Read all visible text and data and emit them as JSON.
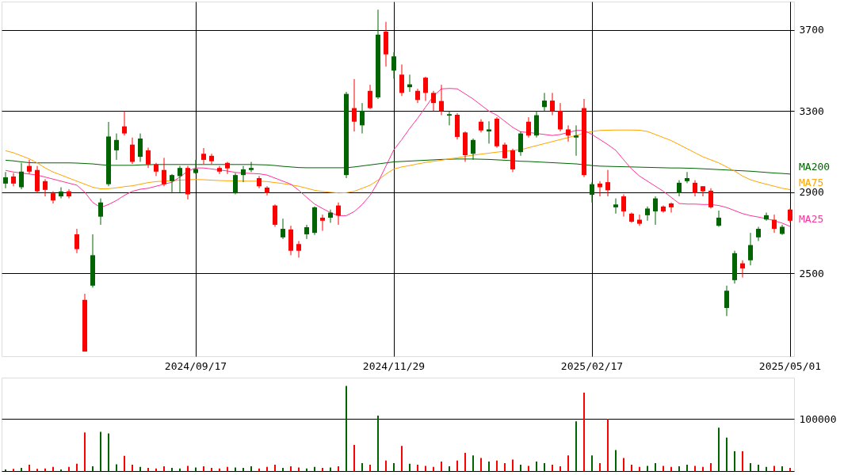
{
  "chart_data": [
    {
      "type": "candlestick",
      "categories": [
        null,
        null,
        null,
        null,
        null,
        null,
        null,
        null,
        null,
        null,
        null,
        null,
        null,
        null,
        null,
        null,
        null,
        null,
        null,
        null,
        null,
        null,
        null,
        null,
        "2024/09/17",
        null,
        null,
        null,
        null,
        null,
        null,
        null,
        null,
        null,
        null,
        null,
        null,
        null,
        null,
        null,
        null,
        null,
        null,
        null,
        null,
        null,
        null,
        null,
        null,
        "2024/11/29",
        null,
        null,
        null,
        null,
        null,
        null,
        null,
        null,
        null,
        null,
        null,
        null,
        null,
        null,
        null,
        null,
        null,
        null,
        null,
        null,
        null,
        null,
        null,
        null,
        "2025/02/17",
        null,
        null,
        null,
        null,
        null,
        null,
        null,
        null,
        null,
        null,
        null,
        null,
        null,
        null,
        null,
        null,
        null,
        null,
        null,
        null,
        null,
        null,
        null,
        null,
        "2025/05/01"
      ],
      "ohlc": [
        [
          2943,
          3000,
          2920,
          2974
        ],
        [
          2978,
          2995,
          2930,
          2943
        ],
        [
          2925,
          3045,
          2915,
          3002
        ],
        [
          3030,
          3060,
          2990,
          3002
        ],
        [
          3010,
          3030,
          2895,
          2905
        ],
        [
          2955,
          2965,
          2880,
          2912
        ],
        [
          2895,
          2905,
          2845,
          2860
        ],
        [
          2880,
          2925,
          2870,
          2904
        ],
        [
          2905,
          2915,
          2870,
          2880
        ],
        [
          2693,
          2720,
          2600,
          2620
        ],
        [
          2370,
          2400,
          2115,
          2115
        ],
        [
          2440,
          2693,
          2430,
          2590
        ],
        [
          2780,
          2870,
          2740,
          2850
        ],
        [
          2940,
          3247,
          2930,
          3175
        ],
        [
          3107,
          3190,
          3060,
          3158
        ],
        [
          3225,
          3300,
          3180,
          3190
        ],
        [
          3135,
          3170,
          3040,
          3050
        ],
        [
          3075,
          3190,
          3050,
          3165
        ],
        [
          3107,
          3120,
          3020,
          3037
        ],
        [
          3037,
          3045,
          2980,
          3002
        ],
        [
          3010,
          3070,
          2930,
          2940
        ],
        [
          2955,
          2990,
          2895,
          2985
        ],
        [
          2980,
          3030,
          2900,
          3020
        ],
        [
          3020,
          3030,
          2865,
          2890
        ],
        [
          2995,
          3060,
          2990,
          3015
        ],
        [
          3090,
          3118,
          3040,
          3060
        ],
        [
          3080,
          3090,
          3040,
          3053
        ],
        [
          3020,
          3030,
          2990,
          3002
        ],
        [
          3045,
          3050,
          2990,
          3018
        ],
        [
          2895,
          2995,
          2890,
          2985
        ],
        [
          2985,
          3030,
          2950,
          3013
        ],
        [
          3010,
          3050,
          3000,
          3020
        ],
        [
          2970,
          2980,
          2920,
          2930
        ],
        [
          2923,
          2930,
          2885,
          2896
        ],
        [
          2835,
          2840,
          2730,
          2740
        ],
        [
          2678,
          2770,
          2670,
          2720
        ],
        [
          2717,
          2735,
          2590,
          2612
        ],
        [
          2645,
          2660,
          2578,
          2612
        ],
        [
          2693,
          2740,
          2670,
          2728
        ],
        [
          2700,
          2830,
          2690,
          2826
        ],
        [
          2775,
          2790,
          2710,
          2760
        ],
        [
          2775,
          2815,
          2750,
          2800
        ],
        [
          2835,
          2850,
          2740,
          2785
        ],
        [
          2985,
          3395,
          2970,
          3385
        ],
        [
          3315,
          3458,
          3200,
          3248
        ],
        [
          3230,
          3340,
          3190,
          3302
        ],
        [
          3400,
          3430,
          3310,
          3315
        ],
        [
          3368,
          3800,
          3360,
          3677
        ],
        [
          3692,
          3740,
          3520,
          3580
        ],
        [
          3500,
          3590,
          3460,
          3570
        ],
        [
          3480,
          3530,
          3375,
          3390
        ],
        [
          3418,
          3480,
          3395,
          3432
        ],
        [
          3400,
          3410,
          3340,
          3355
        ],
        [
          3465,
          3470,
          3350,
          3390
        ],
        [
          3390,
          3400,
          3300,
          3340
        ],
        [
          3350,
          3430,
          3280,
          3300
        ],
        [
          3278,
          3300,
          3230,
          3285
        ],
        [
          3282,
          3290,
          3160,
          3173
        ],
        [
          3195,
          3200,
          3050,
          3083
        ],
        [
          3090,
          3165,
          3060,
          3158
        ],
        [
          3248,
          3260,
          3195,
          3205
        ],
        [
          3200,
          3250,
          3140,
          3210
        ],
        [
          3263,
          3270,
          3120,
          3127
        ],
        [
          3135,
          3145,
          3065,
          3068
        ],
        [
          3107,
          3115,
          3000,
          3013
        ],
        [
          3098,
          3200,
          3080,
          3190
        ],
        [
          3248,
          3270,
          3170,
          3180
        ],
        [
          3180,
          3300,
          3170,
          3280
        ],
        [
          3320,
          3390,
          3300,
          3352
        ],
        [
          3352,
          3390,
          3280,
          3300
        ],
        [
          3302,
          3340,
          3200,
          3210
        ],
        [
          3210,
          3230,
          3150,
          3180
        ],
        [
          3170,
          3230,
          3080,
          3180
        ],
        [
          3315,
          3360,
          2975,
          2985
        ],
        [
          2888,
          2950,
          2850,
          2940
        ],
        [
          2943,
          2955,
          2880,
          2925
        ],
        [
          2950,
          3010,
          2880,
          2910
        ],
        [
          2826,
          2870,
          2795,
          2840
        ],
        [
          2880,
          2890,
          2780,
          2806
        ],
        [
          2795,
          2800,
          2750,
          2755
        ],
        [
          2765,
          2790,
          2735,
          2745
        ],
        [
          2787,
          2830,
          2760,
          2820
        ],
        [
          2806,
          2880,
          2740,
          2870
        ],
        [
          2830,
          2835,
          2800,
          2806
        ],
        [
          2845,
          2850,
          2800,
          2826
        ],
        [
          2896,
          2960,
          2880,
          2947
        ],
        [
          2955,
          3000,
          2945,
          2970
        ],
        [
          2947,
          2960,
          2880,
          2896
        ],
        [
          2930,
          2930,
          2880,
          2905
        ],
        [
          2908,
          2920,
          2820,
          2826
        ],
        [
          2735,
          2810,
          2730,
          2775
        ],
        [
          2330,
          2440,
          2290,
          2415
        ],
        [
          2467,
          2612,
          2450,
          2600
        ],
        [
          2550,
          2565,
          2480,
          2525
        ],
        [
          2565,
          2700,
          2540,
          2640
        ],
        [
          2678,
          2730,
          2660,
          2720
        ],
        [
          2766,
          2800,
          2760,
          2787
        ],
        [
          2765,
          2790,
          2700,
          2720
        ],
        [
          2695,
          2740,
          2690,
          2730
        ],
        [
          2815,
          2820,
          2750,
          2760
        ]
      ],
      "colors": [
        "#006400",
        "#ff0000",
        "#006400",
        "#ff0000",
        "#ff0000",
        "#ff0000",
        "#ff0000",
        "#006400",
        "#ff0000",
        "#ff0000",
        "#ff0000",
        "#006400",
        "#006400",
        "#006400",
        "#006400",
        "#ff0000",
        "#ff0000",
        "#006400",
        "#ff0000",
        "#ff0000",
        "#ff0000",
        "#006400",
        "#006400",
        "#ff0000",
        "#006400",
        "#ff0000",
        "#ff0000",
        "#ff0000",
        "#ff0000",
        "#006400",
        "#006400",
        "#006400",
        "#ff0000",
        "#ff0000",
        "#ff0000",
        "#006400",
        "#ff0000",
        "#ff0000",
        "#006400",
        "#006400",
        "#ff0000",
        "#006400",
        "#ff0000",
        "#006400",
        "#ff0000",
        "#006400",
        "#ff0000",
        "#006400",
        "#ff0000",
        "#006400",
        "#ff0000",
        "#006400",
        "#ff0000",
        "#ff0000",
        "#ff0000",
        "#ff0000",
        "#006400",
        "#ff0000",
        "#ff0000",
        "#006400",
        "#ff0000",
        "#006400",
        "#ff0000",
        "#ff0000",
        "#ff0000",
        "#006400",
        "#ff0000",
        "#006400",
        "#006400",
        "#ff0000",
        "#ff0000",
        "#ff0000",
        "#006400",
        "#ff0000",
        "#006400",
        "#ff0000",
        "#ff0000",
        "#006400",
        "#ff0000",
        "#ff0000",
        "#ff0000",
        "#006400",
        "#006400",
        "#ff0000",
        "#ff0000",
        "#006400",
        "#006400",
        "#ff0000",
        "#ff0000",
        "#ff0000",
        "#006400",
        "#006400",
        "#006400",
        "#ff0000",
        "#006400",
        "#006400",
        "#006400",
        "#ff0000",
        "#006400",
        "#ff0000"
      ],
      "series": [
        {
          "name": "MA200",
          "type": "line",
          "color": "#006400",
          "values": [
            3058,
            3055,
            3050,
            3046,
            3045,
            3045,
            3045,
            3045,
            3045,
            3044,
            3042,
            3040,
            3036,
            3033,
            3033,
            3033,
            3033,
            3035,
            3036,
            3037,
            3037,
            3037,
            3037,
            3037,
            3037,
            3037,
            3037,
            3037,
            3037,
            3037,
            3037,
            3037,
            3036,
            3035,
            3032,
            3028,
            3025,
            3022,
            3021,
            3021,
            3021,
            3021,
            3021,
            3021,
            3025,
            3030,
            3035,
            3040,
            3045,
            3050,
            3052,
            3054,
            3056,
            3058,
            3060,
            3062,
            3063,
            3064,
            3064,
            3064,
            3063,
            3062,
            3060,
            3058,
            3056,
            3053,
            3052,
            3050,
            3048,
            3046,
            3044,
            3042,
            3040,
            3036,
            3032,
            3029,
            3028,
            3027,
            3026,
            3025,
            3024,
            3023,
            3022,
            3021,
            3020,
            3020,
            3019,
            3018,
            3016,
            3014,
            3012,
            3010,
            3008,
            3006,
            3004,
            3001,
            2998,
            2995,
            2993,
            2990
          ]
        },
        {
          "name": "MA75",
          "type": "line",
          "color": "#ffa500",
          "values": [
            3105,
            3095,
            3080,
            3065,
            3045,
            3020,
            3000,
            2985,
            2970,
            2955,
            2940,
            2925,
            2917,
            2918,
            2922,
            2928,
            2932,
            2940,
            2948,
            2953,
            2955,
            2958,
            2960,
            2962,
            2963,
            2962,
            2960,
            2958,
            2957,
            2956,
            2955,
            2955,
            2955,
            2953,
            2948,
            2943,
            2937,
            2930,
            2920,
            2910,
            2904,
            2900,
            2897,
            2898,
            2905,
            2920,
            2935,
            2960,
            2990,
            3015,
            3025,
            3032,
            3040,
            3047,
            3053,
            3058,
            3065,
            3070,
            3077,
            3083,
            3088,
            3093,
            3098,
            3102,
            3106,
            3110,
            3120,
            3130,
            3140,
            3150,
            3160,
            3170,
            3180,
            3192,
            3200,
            3205,
            3206,
            3207,
            3207,
            3207,
            3206,
            3200,
            3185,
            3170,
            3155,
            3135,
            3115,
            3095,
            3075,
            3060,
            3045,
            3025,
            3005,
            2980,
            2962,
            2950,
            2940,
            2930,
            2920,
            2913
          ]
        },
        {
          "name": "MA25",
          "type": "line",
          "color": "#ff3399",
          "values": [
            3008,
            3000,
            2995,
            2990,
            2985,
            2975,
            2965,
            2955,
            2945,
            2935,
            2900,
            2850,
            2825,
            2840,
            2860,
            2885,
            2905,
            2915,
            2920,
            2930,
            2940,
            2950,
            2975,
            3005,
            3020,
            3020,
            3015,
            3010,
            3005,
            2998,
            2995,
            2993,
            2991,
            2985,
            2970,
            2955,
            2940,
            2910,
            2875,
            2842,
            2820,
            2800,
            2785,
            2785,
            2805,
            2840,
            2885,
            2950,
            3030,
            3110,
            3160,
            3215,
            3265,
            3320,
            3375,
            3410,
            3412,
            3410,
            3385,
            3360,
            3330,
            3300,
            3280,
            3250,
            3220,
            3198,
            3195,
            3190,
            3185,
            3180,
            3185,
            3195,
            3205,
            3205,
            3185,
            3160,
            3135,
            3107,
            3060,
            3015,
            2980,
            2955,
            2930,
            2905,
            2875,
            2845,
            2842,
            2842,
            2840,
            2840,
            2835,
            2825,
            2810,
            2795,
            2785,
            2778,
            2770,
            2760,
            2748,
            2732
          ]
        }
      ],
      "ylim": [
        2092,
        3840
      ],
      "yticks": [
        2500,
        2900,
        3300,
        3700
      ],
      "grid": true
    },
    {
      "type": "bar",
      "categories": [
        null,
        null,
        null,
        null,
        null,
        null,
        null,
        null,
        null,
        null,
        null,
        null,
        null,
        null,
        null,
        null,
        null,
        null,
        null,
        null,
        null,
        null,
        null,
        null,
        "2024/09/17",
        null,
        null,
        null,
        null,
        null,
        null,
        null,
        null,
        null,
        null,
        null,
        null,
        null,
        null,
        null,
        null,
        null,
        null,
        null,
        null,
        null,
        null,
        null,
        null,
        "2024/11/29",
        null,
        null,
        null,
        null,
        null,
        null,
        null,
        null,
        null,
        null,
        null,
        null,
        null,
        null,
        null,
        null,
        null,
        null,
        null,
        null,
        null,
        null,
        null,
        null,
        "2025/02/17",
        null,
        null,
        null,
        null,
        null,
        null,
        null,
        null,
        null,
        null,
        null,
        null,
        null,
        null,
        null,
        null,
        null,
        null,
        null,
        null,
        null,
        null,
        null,
        null,
        "2025/05/01"
      ],
      "values": [
        3000,
        4000,
        6000,
        12000,
        4000,
        5000,
        8000,
        3000,
        8000,
        14000,
        74000,
        9000,
        75000,
        72000,
        13000,
        29000,
        12000,
        8000,
        6000,
        5000,
        9000,
        6000,
        5000,
        10000,
        7000,
        9000,
        6000,
        5000,
        8000,
        7000,
        6000,
        9000,
        5000,
        8000,
        12000,
        6000,
        9000,
        7000,
        5000,
        8000,
        6000,
        7000,
        9000,
        163000,
        50000,
        15000,
        12000,
        106000,
        20000,
        15000,
        48000,
        14000,
        12000,
        10000,
        8000,
        18000,
        9000,
        20000,
        35000,
        30000,
        25000,
        18000,
        20000,
        15000,
        22000,
        12000,
        10000,
        18000,
        15000,
        12000,
        9000,
        30000,
        95000,
        150000,
        30000,
        15000,
        100000,
        40000,
        25000,
        12000,
        8000,
        10000,
        15000,
        10000,
        8000,
        9000,
        12000,
        10000,
        8000,
        15000,
        83000,
        64000,
        38000,
        38000,
        15000,
        12000,
        8000,
        10000,
        9000,
        6000
      ],
      "colors": [
        "#006400",
        "#ff0000",
        "#006400",
        "#ff0000",
        "#ff0000",
        "#ff0000",
        "#ff0000",
        "#006400",
        "#ff0000",
        "#ff0000",
        "#ff0000",
        "#006400",
        "#006400",
        "#006400",
        "#006400",
        "#ff0000",
        "#ff0000",
        "#006400",
        "#ff0000",
        "#ff0000",
        "#ff0000",
        "#006400",
        "#006400",
        "#ff0000",
        "#006400",
        "#ff0000",
        "#ff0000",
        "#ff0000",
        "#ff0000",
        "#006400",
        "#006400",
        "#006400",
        "#ff0000",
        "#ff0000",
        "#ff0000",
        "#006400",
        "#ff0000",
        "#ff0000",
        "#006400",
        "#006400",
        "#ff0000",
        "#006400",
        "#ff0000",
        "#006400",
        "#ff0000",
        "#006400",
        "#ff0000",
        "#006400",
        "#ff0000",
        "#006400",
        "#ff0000",
        "#006400",
        "#ff0000",
        "#ff0000",
        "#ff0000",
        "#ff0000",
        "#006400",
        "#ff0000",
        "#ff0000",
        "#006400",
        "#ff0000",
        "#006400",
        "#ff0000",
        "#ff0000",
        "#ff0000",
        "#006400",
        "#ff0000",
        "#006400",
        "#006400",
        "#ff0000",
        "#ff0000",
        "#ff0000",
        "#006400",
        "#ff0000",
        "#006400",
        "#ff0000",
        "#ff0000",
        "#006400",
        "#ff0000",
        "#ff0000",
        "#ff0000",
        "#006400",
        "#006400",
        "#ff0000",
        "#ff0000",
        "#006400",
        "#006400",
        "#ff0000",
        "#ff0000",
        "#ff0000",
        "#006400",
        "#006400",
        "#006400",
        "#ff0000",
        "#006400",
        "#006400",
        "#006400",
        "#ff0000",
        "#006400",
        "#ff0000"
      ],
      "ylim": [
        0,
        178800
      ],
      "yticks": [
        {
          "value": 0,
          "label": null
        },
        100000
      ],
      "grid": "y",
      "tick_labels": "y"
    }
  ]
}
